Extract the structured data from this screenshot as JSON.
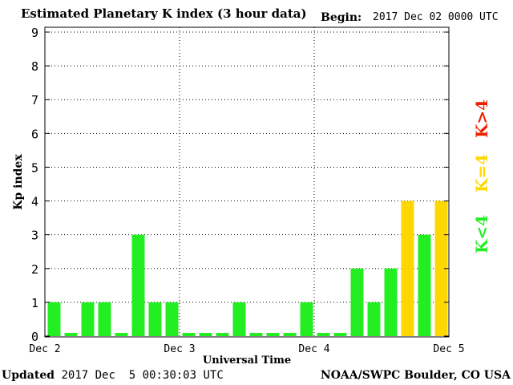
{
  "header": {
    "title": "Estimated Planetary K index (3 hour data)",
    "begin_label": "Begin:",
    "begin_value": "2017 Dec 02 0000 UTC"
  },
  "footer": {
    "updated_label": "Updated",
    "updated_value": "2017 Dec  5 00:30:03 UTC",
    "credit": "NOAA/SWPC Boulder, CO USA"
  },
  "legend": [
    {
      "label": "K<4",
      "color": "#22ee22"
    },
    {
      "label": "K=4",
      "color": "#ffd700"
    },
    {
      "label": "K>4",
      "color": "#ee2200"
    }
  ],
  "colors": {
    "low": "#22ee22",
    "equal": "#ffd700",
    "high": "#ee2200"
  },
  "chart_data": {
    "type": "bar",
    "ylabel": "Kp index",
    "xlabel": "Universal Time",
    "ylim": [
      0,
      9
    ],
    "yticks": [
      0,
      1,
      2,
      3,
      4,
      5,
      6,
      7,
      8,
      9
    ],
    "day_labels": [
      "Dec 2",
      "Dec 3",
      "Dec 4",
      "Dec 5"
    ],
    "grid": true,
    "values": [
      1,
      0,
      1,
      1,
      0,
      3,
      1,
      1,
      0,
      0,
      0,
      1,
      0,
      0,
      0,
      1,
      0,
      0,
      2,
      1,
      2,
      4,
      3,
      4
    ]
  }
}
